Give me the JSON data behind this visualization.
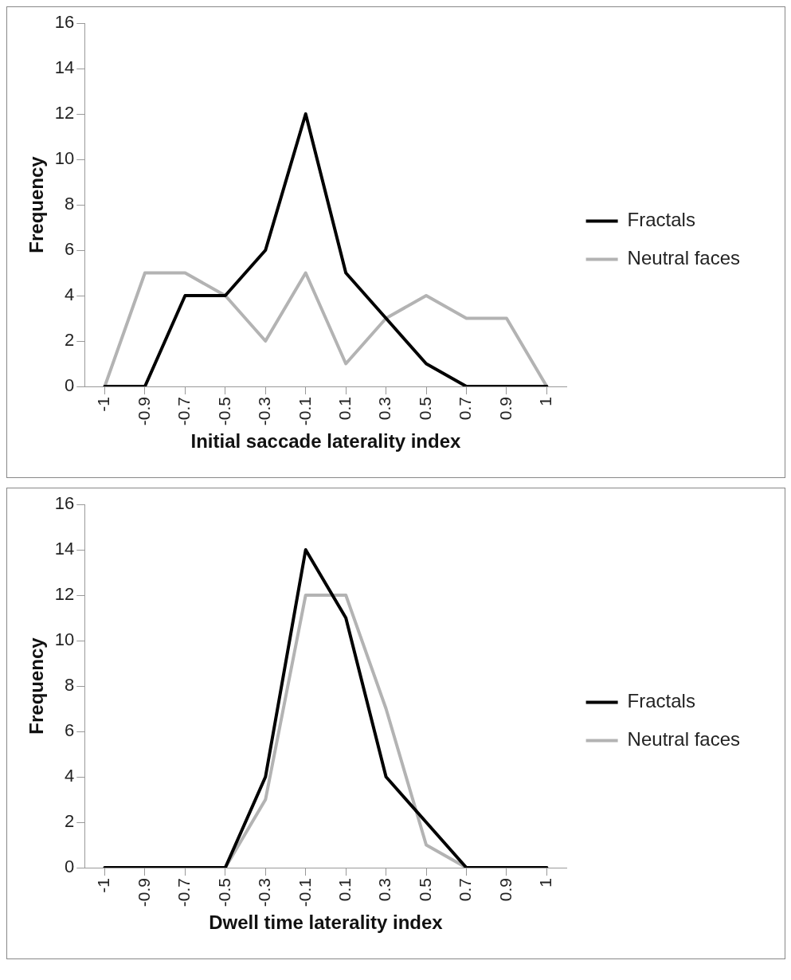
{
  "chart_data": [
    {
      "type": "line",
      "xlabel": "Initial saccade laterality index",
      "ylabel": "Frequency",
      "categories": [
        "-1",
        "-0.9",
        "-0.7",
        "-0.5",
        "-0.3",
        "-0.1",
        "0.1",
        "0.3",
        "0.5",
        "0.7",
        "0.9",
        "1"
      ],
      "series": [
        {
          "name": "Fractals",
          "color": "#000000",
          "values": [
            0,
            0,
            4,
            4,
            6,
            12,
            5,
            3,
            1,
            0,
            0,
            0
          ]
        },
        {
          "name": "Neutral faces",
          "color": "#b3b3b3",
          "values": [
            0,
            5,
            5,
            4,
            2,
            5,
            1,
            3,
            4,
            3,
            3,
            0
          ]
        }
      ],
      "ylim": [
        0,
        16
      ],
      "yticks": [
        0,
        2,
        4,
        6,
        8,
        10,
        12,
        14,
        16
      ],
      "grid": false,
      "legend": "right",
      "marker": "none",
      "line_style": "solid"
    },
    {
      "type": "line",
      "xlabel": "Dwell time laterality index",
      "ylabel": "Frequency",
      "categories": [
        "-1",
        "-0.9",
        "-0.7",
        "-0.5",
        "-0.3",
        "-0.1",
        "0.1",
        "0.3",
        "0.5",
        "0.7",
        "0.9",
        "1"
      ],
      "series": [
        {
          "name": "Fractals",
          "color": "#000000",
          "values": [
            0,
            0,
            0,
            0,
            4,
            14,
            11,
            4,
            2,
            0,
            0,
            0
          ]
        },
        {
          "name": "Neutral faces",
          "color": "#b3b3b3",
          "values": [
            0,
            0,
            0,
            0,
            3,
            12,
            12,
            7,
            1,
            0,
            0,
            0
          ]
        }
      ],
      "ylim": [
        0,
        16
      ],
      "yticks": [
        0,
        2,
        4,
        6,
        8,
        10,
        12,
        14,
        16
      ],
      "grid": false,
      "legend": "right",
      "marker": "none",
      "line_style": "solid"
    }
  ]
}
